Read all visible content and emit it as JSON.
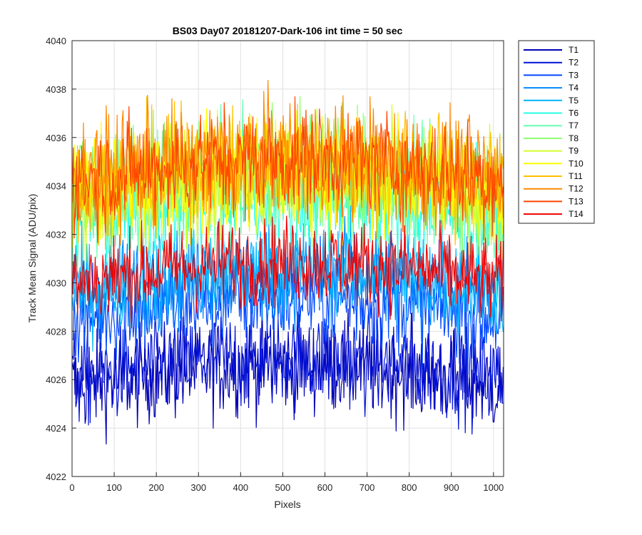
{
  "chart_data": {
    "type": "line",
    "title": "BS03 Day07 20181207-Dark-106 int time = 50 sec",
    "xlabel": "Pixels",
    "ylabel": "Track Mean Signal (ADU/pix)",
    "xlim": [
      0,
      1024
    ],
    "ylim": [
      4022,
      4040
    ],
    "x_ticks": [
      0,
      100,
      200,
      300,
      400,
      500,
      600,
      700,
      800,
      900,
      1000
    ],
    "y_ticks": [
      4022,
      4024,
      4026,
      4028,
      4030,
      4032,
      4034,
      4036,
      4038,
      4040
    ],
    "grid": true,
    "legend_position": "outside-right",
    "series": [
      {
        "name": "T1",
        "color": "#0000b4",
        "mean": 4026.0,
        "noise": 1.0
      },
      {
        "name": "T2",
        "color": "#0010d6",
        "mean": 4026.3,
        "noise": 1.0
      },
      {
        "name": "T3",
        "color": "#0048ff",
        "mean": 4028.8,
        "noise": 1.0
      },
      {
        "name": "T4",
        "color": "#0088ff",
        "mean": 4029.8,
        "noise": 1.0
      },
      {
        "name": "T5",
        "color": "#00b4ff",
        "mean": 4030.0,
        "noise": 1.0
      },
      {
        "name": "T6",
        "color": "#28ffe8",
        "mean": 4033.0,
        "noise": 1.2
      },
      {
        "name": "T7",
        "color": "#66ffb0",
        "mean": 4033.5,
        "noise": 1.2
      },
      {
        "name": "T8",
        "color": "#8cff70",
        "mean": 4034.2,
        "noise": 1.2
      },
      {
        "name": "T9",
        "color": "#d4ff28",
        "mean": 4033.8,
        "noise": 1.2
      },
      {
        "name": "T10",
        "color": "#ffff00",
        "mean": 4034.0,
        "noise": 1.2
      },
      {
        "name": "T11",
        "color": "#ffc000",
        "mean": 4034.3,
        "noise": 1.2
      },
      {
        "name": "T12",
        "color": "#ff8800",
        "mean": 4034.6,
        "noise": 1.2
      },
      {
        "name": "T13",
        "color": "#ff4400",
        "mean": 4034.5,
        "noise": 1.1
      },
      {
        "name": "T14",
        "color": "#ee0000",
        "mean": 4030.3,
        "noise": 0.9
      }
    ]
  }
}
